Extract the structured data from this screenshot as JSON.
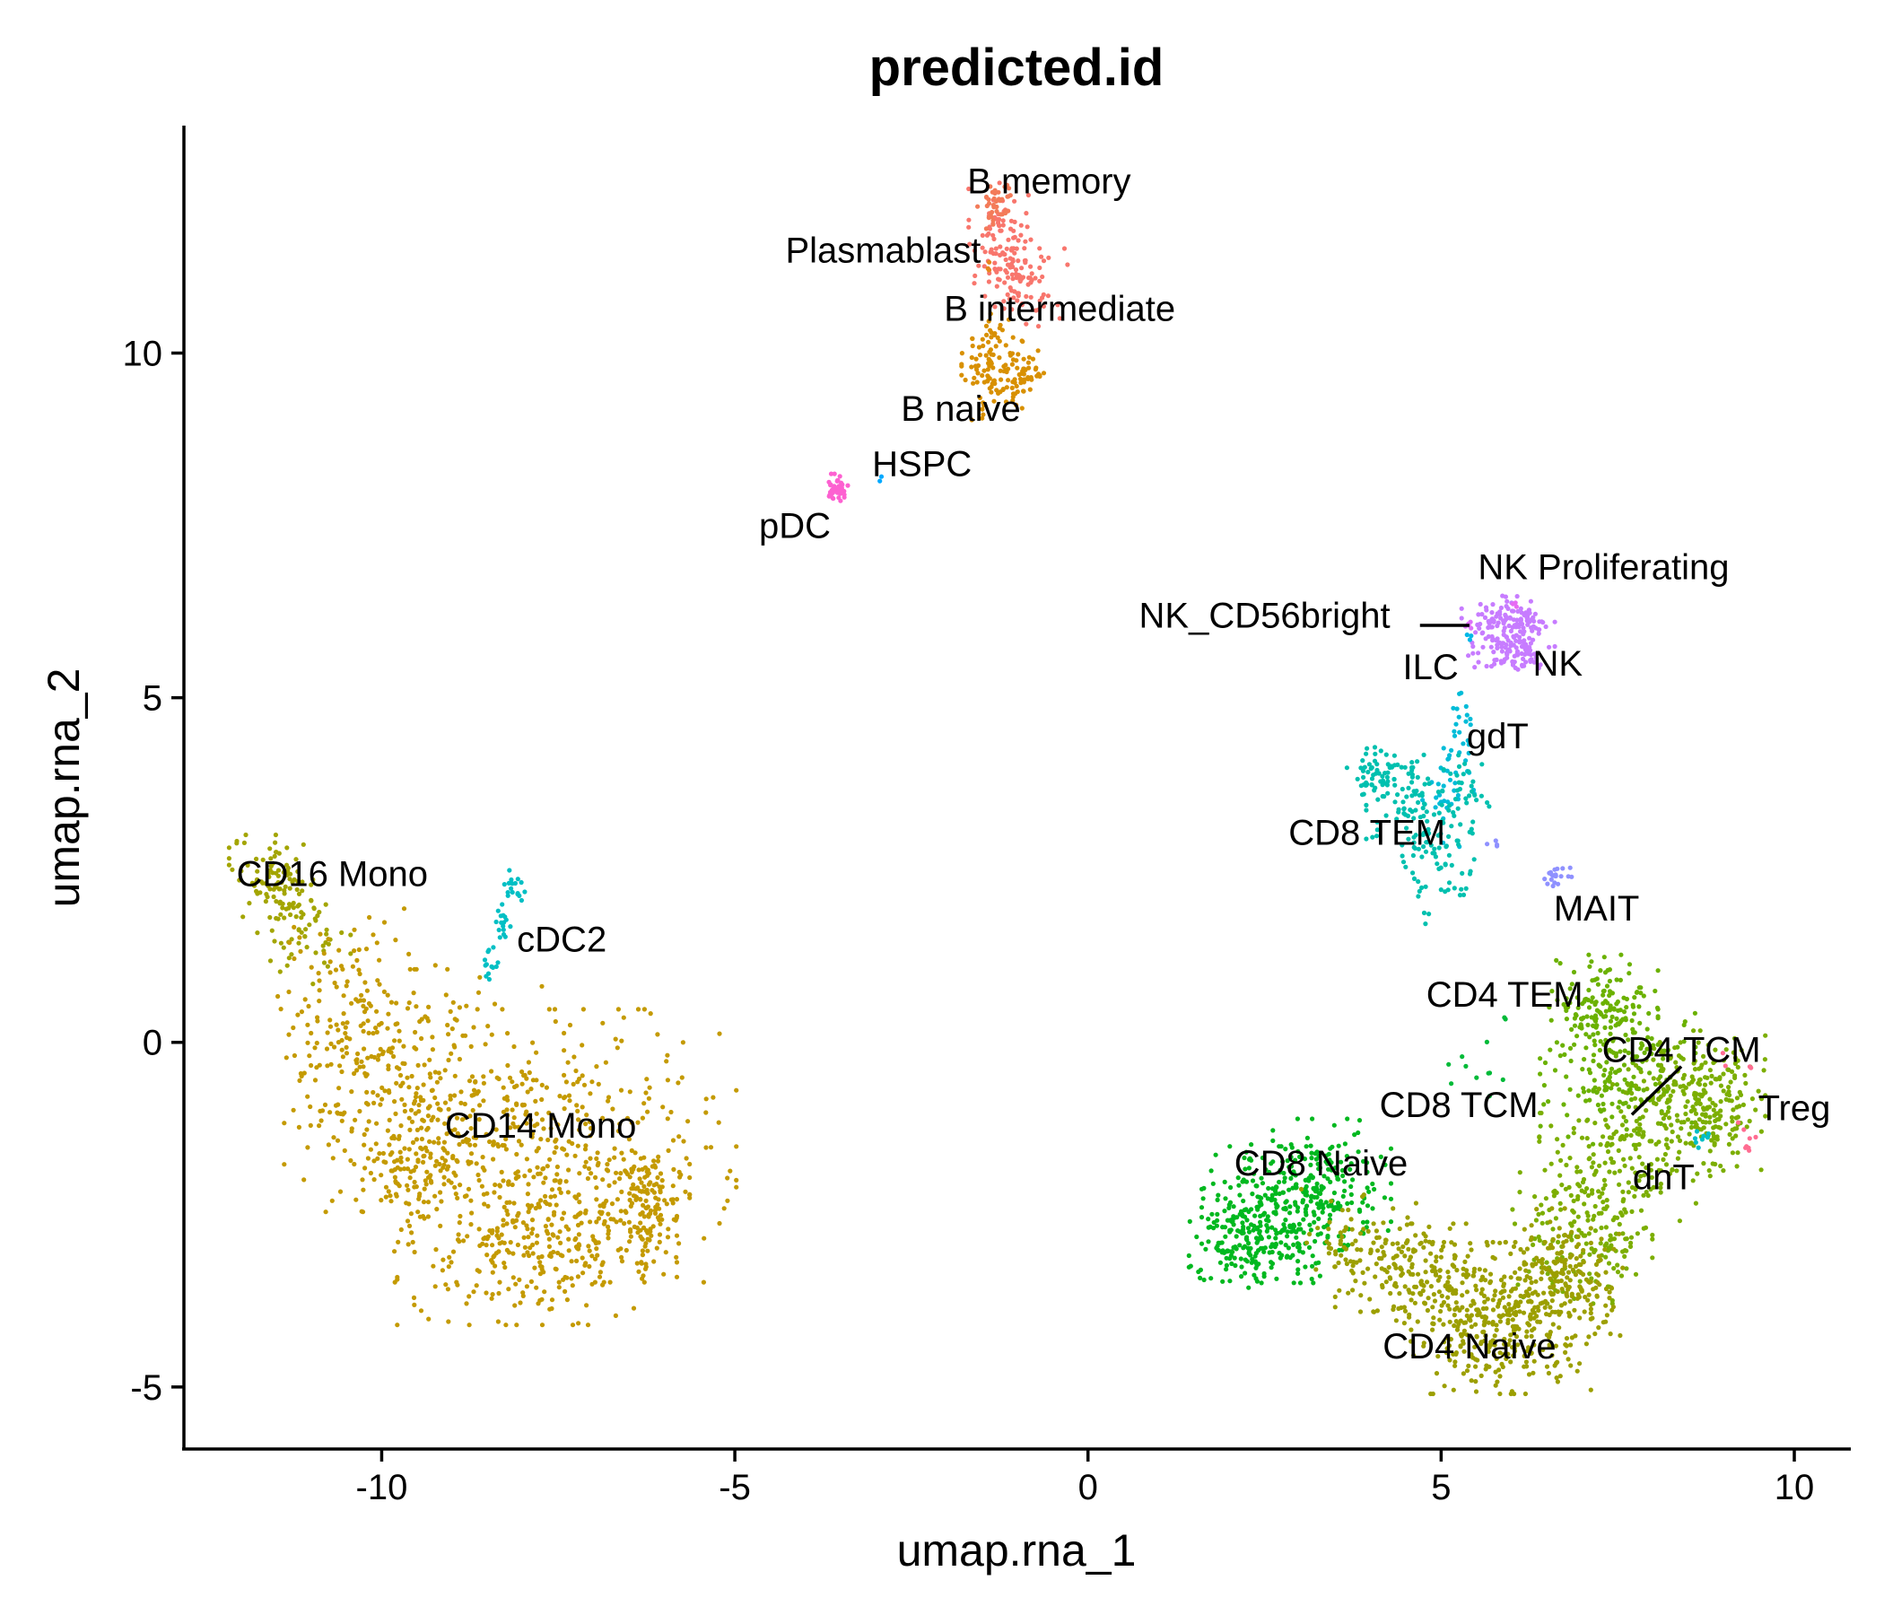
{
  "chart_data": {
    "type": "scatter",
    "title": "predicted.id",
    "xlabel": "umap.rna_1",
    "ylabel": "umap.rna_2",
    "xlim": [
      -12.8,
      10.8
    ],
    "ylim": [
      -5.9,
      13.3
    ],
    "x_ticks": [
      -10,
      -5,
      0,
      5,
      10
    ],
    "x_tick_labels": [
      "-10",
      "-5",
      "0",
      "5",
      "10"
    ],
    "y_ticks": [
      -5,
      0,
      5,
      10
    ],
    "y_tick_labels": [
      "-5",
      "0",
      "5",
      "10"
    ],
    "legend": "none",
    "clusters": [
      {
        "name": "B intermediate",
        "color": "#F8766D",
        "n": 160,
        "blobs": [
          {
            "x": -1.25,
            "y": 11.7,
            "sx": 0.2,
            "sy": 0.35,
            "w": 1
          },
          {
            "x": -0.95,
            "y": 11.05,
            "sx": 0.3,
            "sy": 0.3,
            "w": 1
          }
        ]
      },
      {
        "name": "B memory",
        "color": "#F37B59",
        "n": 40,
        "blobs": [
          {
            "x": -1.3,
            "y": 12.2,
            "sx": 0.12,
            "sy": 0.18,
            "w": 1
          }
        ]
      },
      {
        "name": "B naive",
        "color": "#D89000",
        "n": 150,
        "blobs": [
          {
            "x": -1.35,
            "y": 9.8,
            "sx": 0.2,
            "sy": 0.35,
            "w": 1
          },
          {
            "x": -0.95,
            "y": 9.7,
            "sx": 0.2,
            "sy": 0.25,
            "w": 0.6
          }
        ]
      },
      {
        "name": "Plasmablast",
        "color": "#E7861B",
        "n": 3,
        "blobs": [
          {
            "x": -1.4,
            "y": 11.2,
            "sx": 0.05,
            "sy": 0.1,
            "w": 1
          }
        ]
      },
      {
        "name": "pDC",
        "color": "#FD61D1",
        "n": 45,
        "blobs": [
          {
            "x": -3.55,
            "y": 8.05,
            "sx": 0.08,
            "sy": 0.09,
            "w": 1
          }
        ]
      },
      {
        "name": "HSPC",
        "color": "#00A9FF",
        "n": 2,
        "blobs": [
          {
            "x": -2.9,
            "y": 8.15,
            "sx": 0.03,
            "sy": 0.03,
            "w": 1
          }
        ]
      },
      {
        "name": "CD16 Mono",
        "color": "#A3A500",
        "n": 150,
        "blobs": [
          {
            "x": -11.5,
            "y": 2.35,
            "sx": 0.3,
            "sy": 0.3,
            "w": 1
          },
          {
            "x": -11.1,
            "y": 1.6,
            "sx": 0.3,
            "sy": 0.35,
            "w": 0.6
          }
        ]
      },
      {
        "name": "CD14 Mono",
        "color": "#C49A00",
        "n": 1250,
        "blobs": [
          {
            "x": -10.45,
            "y": 0.4,
            "sx": 0.55,
            "sy": 0.7,
            "w": 0.5
          },
          {
            "x": -9.4,
            "y": -0.7,
            "sx": 0.9,
            "sy": 0.8,
            "w": 1
          },
          {
            "x": -7.4,
            "y": -1.5,
            "sx": 1.1,
            "sy": 0.9,
            "w": 1.3
          },
          {
            "x": -7.8,
            "y": -3.0,
            "sx": 0.9,
            "sy": 0.5,
            "w": 1
          },
          {
            "x": -6.3,
            "y": -2.4,
            "sx": 0.3,
            "sy": 0.45,
            "w": 0.5
          },
          {
            "x": -9.6,
            "y": -1.8,
            "sx": 0.5,
            "sy": 0.5,
            "w": 0.4
          }
        ]
      },
      {
        "name": "cDC2",
        "color": "#00BFC4",
        "n": 45,
        "blobs": [
          {
            "x": -8.15,
            "y": 2.25,
            "sx": 0.08,
            "sy": 0.12,
            "w": 1
          },
          {
            "x": -8.3,
            "y": 1.7,
            "sx": 0.06,
            "sy": 0.2,
            "w": 1
          },
          {
            "x": -8.45,
            "y": 1.1,
            "sx": 0.05,
            "sy": 0.15,
            "w": 0.7
          }
        ]
      },
      {
        "name": "NK",
        "color": "#C77CFF",
        "n": 210,
        "blobs": [
          {
            "x": 5.95,
            "y": 6.0,
            "sx": 0.3,
            "sy": 0.22,
            "w": 1
          },
          {
            "x": 6.0,
            "y": 5.6,
            "sx": 0.25,
            "sy": 0.12,
            "w": 0.4
          }
        ]
      },
      {
        "name": "NK Proliferating",
        "color": "#E76BF3",
        "n": 3,
        "blobs": [
          {
            "x": 6.05,
            "y": 6.35,
            "sx": 0.05,
            "sy": 0.05,
            "w": 1
          }
        ]
      },
      {
        "name": "NK_CD56bright",
        "color": "#DC71FA",
        "n": 5,
        "blobs": [
          {
            "x": 5.4,
            "y": 6.05,
            "sx": 0.05,
            "sy": 0.06,
            "w": 1
          }
        ]
      },
      {
        "name": "ILC",
        "color": "#00B8E7",
        "n": 3,
        "blobs": [
          {
            "x": 5.4,
            "y": 5.9,
            "sx": 0.04,
            "sy": 0.04,
            "w": 1
          }
        ]
      },
      {
        "name": "gdT",
        "color": "#00BCD8",
        "n": 55,
        "blobs": [
          {
            "x": 5.3,
            "y": 4.3,
            "sx": 0.12,
            "sy": 0.35,
            "w": 1
          },
          {
            "x": 5.0,
            "y": 3.5,
            "sx": 0.12,
            "sy": 0.3,
            "w": 0.6
          }
        ]
      },
      {
        "name": "CD8 TEM",
        "color": "#00C0AF",
        "n": 230,
        "blobs": [
          {
            "x": 4.1,
            "y": 3.9,
            "sx": 0.22,
            "sy": 0.2,
            "w": 1
          },
          {
            "x": 4.6,
            "y": 3.4,
            "sx": 0.3,
            "sy": 0.35,
            "w": 1
          },
          {
            "x": 5.0,
            "y": 2.6,
            "sx": 0.25,
            "sy": 0.4,
            "w": 1
          },
          {
            "x": 5.35,
            "y": 3.6,
            "sx": 0.15,
            "sy": 0.35,
            "w": 0.6
          }
        ]
      },
      {
        "name": "MAIT",
        "color": "#8F91FF",
        "n": 25,
        "blobs": [
          {
            "x": 6.6,
            "y": 2.4,
            "sx": 0.12,
            "sy": 0.06,
            "w": 1
          },
          {
            "x": 5.75,
            "y": 2.85,
            "sx": 0.05,
            "sy": 0.05,
            "w": 0.2
          }
        ]
      },
      {
        "name": "CD4 TEM",
        "color": "#6BB100",
        "n": 320,
        "blobs": [
          {
            "x": 7.3,
            "y": 0.5,
            "sx": 0.35,
            "sy": 0.35,
            "w": 1
          },
          {
            "x": 7.5,
            "y": -0.5,
            "sx": 0.5,
            "sy": 0.45,
            "w": 1
          }
        ]
      },
      {
        "name": "CD4 TCM",
        "color": "#7CAE00",
        "n": 580,
        "blobs": [
          {
            "x": 8.6,
            "y": -0.6,
            "sx": 0.45,
            "sy": 0.35,
            "w": 1
          },
          {
            "x": 7.6,
            "y": -1.6,
            "sx": 0.55,
            "sy": 0.45,
            "w": 1
          },
          {
            "x": 7.0,
            "y": -2.8,
            "sx": 0.45,
            "sy": 0.45,
            "w": 1
          },
          {
            "x": 9.0,
            "y": -1.2,
            "sx": 0.25,
            "sy": 0.3,
            "w": 0.4
          }
        ]
      },
      {
        "name": "CD8 TCM",
        "color": "#00BA38",
        "n": 12,
        "blobs": [
          {
            "x": 5.6,
            "y": -0.3,
            "sx": 0.35,
            "sy": 0.3,
            "w": 1
          }
        ]
      },
      {
        "name": "CD8 Naive",
        "color": "#00B81F",
        "n": 520,
        "blobs": [
          {
            "x": 2.6,
            "y": -2.5,
            "sx": 0.45,
            "sy": 0.45,
            "w": 1
          },
          {
            "x": 3.3,
            "y": -2.1,
            "sx": 0.45,
            "sy": 0.45,
            "w": 1
          },
          {
            "x": 2.2,
            "y": -2.9,
            "sx": 0.35,
            "sy": 0.3,
            "w": 0.6
          }
        ]
      },
      {
        "name": "CD4 Naive",
        "color": "#9C9F00",
        "n": 760,
        "blobs": [
          {
            "x": 5.8,
            "y": -4.0,
            "sx": 0.6,
            "sy": 0.5,
            "w": 1.4
          },
          {
            "x": 4.6,
            "y": -3.4,
            "sx": 0.5,
            "sy": 0.35,
            "w": 0.6
          },
          {
            "x": 6.8,
            "y": -3.4,
            "sx": 0.35,
            "sy": 0.45,
            "w": 0.7
          },
          {
            "x": 3.9,
            "y": -2.9,
            "sx": 0.4,
            "sy": 0.35,
            "w": 0.3
          }
        ]
      },
      {
        "name": "Treg",
        "color": "#FF6C91",
        "n": 12,
        "blobs": [
          {
            "x": 9.35,
            "y": -1.5,
            "sx": 0.08,
            "sy": 0.2,
            "w": 1
          },
          {
            "x": 9.0,
            "y": -0.3,
            "sx": 0.3,
            "sy": 0.1,
            "w": 0.6
          }
        ]
      },
      {
        "name": "dnT",
        "color": "#00BEC7",
        "n": 8,
        "blobs": [
          {
            "x": 8.7,
            "y": -1.4,
            "sx": 0.08,
            "sy": 0.08,
            "w": 1
          }
        ]
      }
    ],
    "labels": [
      {
        "text": "B memory",
        "x": -0.55,
        "y": 12.5
      },
      {
        "text": "Plasmablast",
        "x": -2.9,
        "y": 11.5
      },
      {
        "text": "B intermediate",
        "x": -0.4,
        "y": 10.65
      },
      {
        "text": "B naive",
        "x": -1.8,
        "y": 9.2
      },
      {
        "text": "HSPC",
        "x": -2.35,
        "y": 8.4
      },
      {
        "text": "pDC",
        "x": -4.15,
        "y": 7.5
      },
      {
        "text": "NK Proliferating",
        "x": 7.3,
        "y": 6.9
      },
      {
        "text": "NK_CD56bright",
        "x": 2.5,
        "y": 6.2
      },
      {
        "text": "ILC",
        "x": 4.85,
        "y": 5.45
      },
      {
        "text": "NK",
        "x": 6.65,
        "y": 5.5
      },
      {
        "text": "gdT",
        "x": 5.8,
        "y": 4.45
      },
      {
        "text": "CD8 TEM",
        "x": 3.95,
        "y": 3.05
      },
      {
        "text": "MAIT",
        "x": 7.2,
        "y": 1.95
      },
      {
        "text": "CD16 Mono",
        "x": -10.7,
        "y": 2.45
      },
      {
        "text": "cDC2",
        "x": -7.45,
        "y": 1.5
      },
      {
        "text": "CD14 Mono",
        "x": -7.75,
        "y": -1.2
      },
      {
        "text": "CD4 TEM",
        "x": 5.9,
        "y": 0.7
      },
      {
        "text": "CD4 TCM",
        "x": 8.4,
        "y": -0.1
      },
      {
        "text": "CD8 TCM",
        "x": 5.25,
        "y": -0.9
      },
      {
        "text": "Treg",
        "x": 10.0,
        "y": -0.95
      },
      {
        "text": "CD8 Naive",
        "x": 3.3,
        "y": -1.75
      },
      {
        "text": "dnT",
        "x": 8.15,
        "y": -1.95
      },
      {
        "text": "CD4 Naive",
        "x": 5.4,
        "y": -4.4
      }
    ],
    "leader_lines": [
      {
        "x1": 4.7,
        "y1": 6.05,
        "x2": 5.4,
        "y2": 6.05
      },
      {
        "x1": 7.7,
        "y1": -1.05,
        "x2": 8.4,
        "y2": -0.35
      }
    ]
  }
}
